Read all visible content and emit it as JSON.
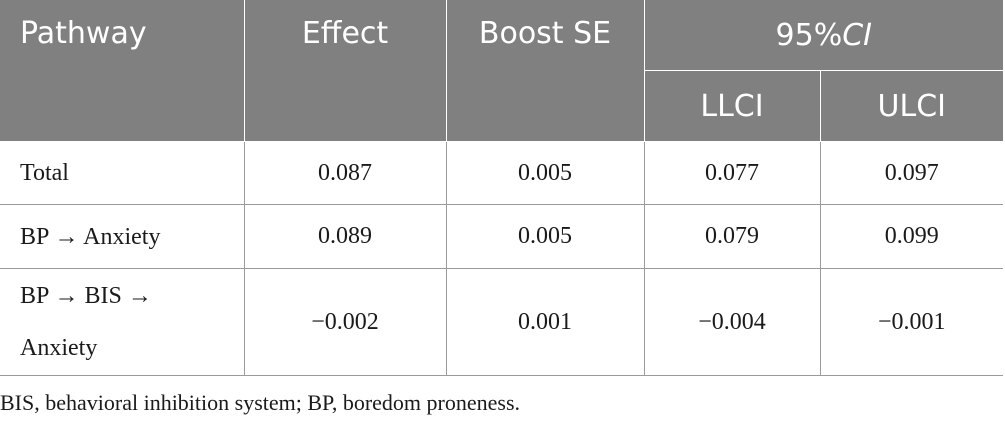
{
  "table": {
    "headers": {
      "pathway": "Pathway",
      "effect": "Effect",
      "boost_se": "Boost SE",
      "ci_prefix": "95%",
      "ci_italic": "CI",
      "llci": "LLCI",
      "ulci": "ULCI"
    },
    "rows": [
      {
        "pathway": "Total",
        "effect": "0.087",
        "boost_se": "0.005",
        "llci": "0.077",
        "ulci": "0.097"
      },
      {
        "pathway": "BP → Anxiety",
        "effect": "0.089",
        "boost_se": "0.005",
        "llci": "0.079",
        "ulci": "0.099"
      },
      {
        "pathway_line1": "BP → BIS →",
        "pathway_line2": "Anxiety",
        "effect": "−0.002",
        "boost_se": "0.001",
        "llci": "−0.004",
        "ulci": "−0.001"
      }
    ]
  },
  "footnote": "BIS, behavioral inhibition system; BP, boredom proneness.",
  "colors": {
    "header_bg": "#808080",
    "header_text": "#ffffff",
    "border": "#9a9a9a"
  }
}
